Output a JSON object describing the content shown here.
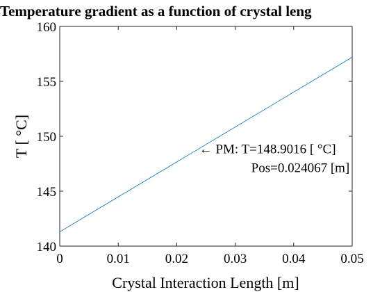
{
  "chart_data": {
    "type": "line",
    "title": "Temperature gradient as a function of crystal leng",
    "xlabel": "Crystal Interaction Length [m]",
    "ylabel": "T [ °C]",
    "xlim": [
      0,
      0.05
    ],
    "ylim": [
      140,
      160
    ],
    "x_ticks": [
      "0",
      "0.01",
      "0.02",
      "0.03",
      "0.04",
      "0.05"
    ],
    "y_ticks": [
      "140",
      "145",
      "150",
      "155",
      "160"
    ],
    "grid": false,
    "series": [
      {
        "x": [
          0,
          0.05
        ],
        "y": [
          141.3,
          157.2
        ],
        "color": "#0072BD"
      }
    ],
    "annotation": {
      "line1": "← PM: T=148.9016 [ °C]",
      "line2": "Pos=0.024067 [m]",
      "x": 0.024067,
      "y": 148.9016
    }
  }
}
